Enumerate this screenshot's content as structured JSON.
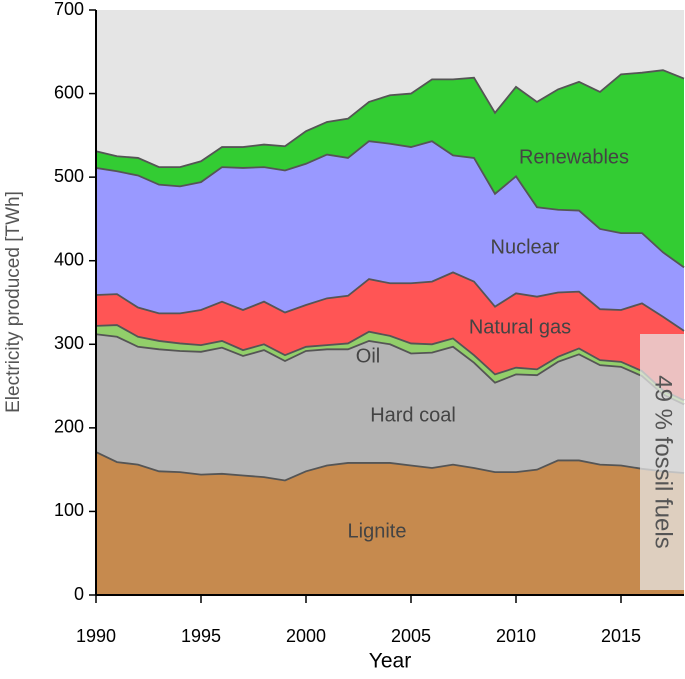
{
  "chart_data": {
    "type": "stacked_area",
    "x_label": "Year",
    "y_label": "Electricity produced [TWh]",
    "x": [
      1990,
      1991,
      1992,
      1993,
      1994,
      1995,
      1996,
      1997,
      1998,
      1999,
      2000,
      2001,
      2002,
      2003,
      2004,
      2005,
      2006,
      2007,
      2008,
      2009,
      2010,
      2011,
      2012,
      2013,
      2014,
      2015,
      2016,
      2017,
      2018
    ],
    "series": [
      {
        "name": "Lignite",
        "color": "#c68a4e",
        "values": [
          171,
          159,
          156,
          148,
          147,
          144,
          145,
          143,
          141,
          137,
          148,
          155,
          158,
          158,
          158,
          155,
          152,
          156,
          152,
          147,
          147,
          150,
          161,
          161,
          156,
          155,
          151,
          148,
          146
        ]
      },
      {
        "name": "Hard coal",
        "color": "#b4b4b4",
        "values": [
          141,
          150,
          141,
          146,
          145,
          147,
          151,
          143,
          152,
          143,
          144,
          139,
          136,
          146,
          142,
          134,
          138,
          141,
          126,
          107,
          117,
          113,
          118,
          127,
          119,
          118,
          111,
          92,
          82
        ]
      },
      {
        "name": "Oil",
        "color": "#92cf6a",
        "values": [
          10,
          14,
          12,
          10,
          9,
          8,
          8,
          7,
          7,
          7,
          5,
          5,
          7,
          11,
          10,
          12,
          10,
          10,
          9,
          10,
          8,
          7,
          6,
          7,
          6,
          6,
          6,
          5,
          5
        ]
      },
      {
        "name": "Natural gas",
        "color": "#ff5555",
        "values": [
          37,
          37,
          35,
          33,
          36,
          42,
          47,
          48,
          51,
          51,
          50,
          56,
          57,
          63,
          63,
          72,
          75,
          79,
          88,
          81,
          89,
          87,
          77,
          68,
          61,
          62,
          81,
          88,
          83
        ]
      },
      {
        "name": "Nuclear",
        "color": "#9999ff",
        "values": [
          152,
          147,
          158,
          154,
          152,
          153,
          161,
          170,
          161,
          170,
          169,
          172,
          165,
          165,
          167,
          163,
          168,
          140,
          148,
          135,
          140,
          107,
          99,
          97,
          96,
          92,
          84,
          77,
          76
        ]
      },
      {
        "name": "Renewables",
        "color": "#33cc33",
        "values": [
          20,
          18,
          21,
          21,
          23,
          25,
          24,
          25,
          27,
          29,
          39,
          39,
          47,
          47,
          58,
          64,
          74,
          91,
          96,
          97,
          107,
          126,
          144,
          154,
          164,
          190,
          192,
          218,
          226
        ]
      }
    ],
    "annotation": "49 % fossil fuels",
    "background": "#e5e5e5",
    "xlim": [
      1990,
      2018
    ],
    "xticks": [
      1990,
      1995,
      2000,
      2005,
      2010,
      2015
    ],
    "ylim": [
      0,
      700
    ],
    "yticks": [
      0,
      100,
      200,
      300,
      400,
      500,
      600,
      700
    ]
  }
}
